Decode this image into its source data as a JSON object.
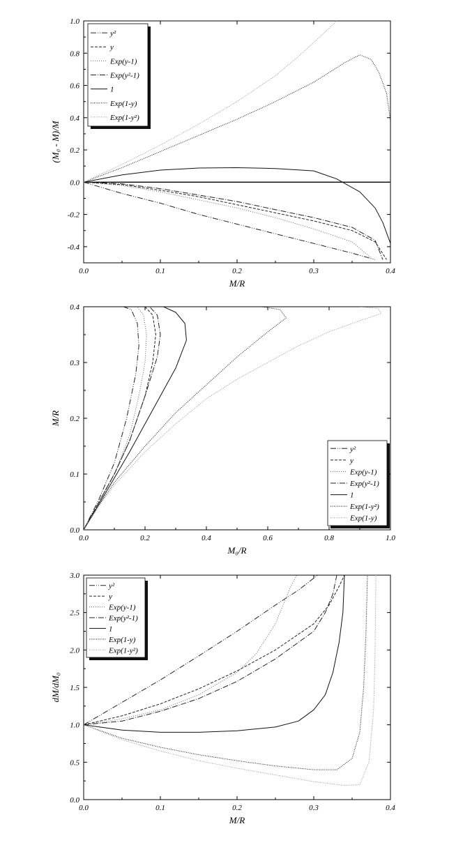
{
  "chart_data": [
    {
      "type": "line",
      "xlabel": "M/R",
      "ylabel": "(M₀ - M)/M",
      "xlim": [
        0.0,
        0.4
      ],
      "ylim": [
        -0.5,
        1.0
      ],
      "xticks": [
        0.0,
        0.1,
        0.2,
        0.3,
        0.4
      ],
      "yticks": [
        -0.4,
        -0.2,
        0.0,
        0.2,
        0.4,
        0.6,
        0.8,
        1.0
      ],
      "xtick_labels": [
        "0.0",
        "0.1",
        "0.2",
        "0.3",
        "0.4"
      ],
      "ytick_labels": [
        "-0.4",
        "-0.2",
        "0.0",
        "0.2",
        "0.4",
        "0.6",
        "0.8",
        "1.0"
      ],
      "legend_position": "top-left",
      "grid": false,
      "hline": 0.0,
      "series": [
        {
          "name": "y²",
          "dash": "8,2,1,2,1,2",
          "color": "#222222",
          "points": [
            [
              0,
              0
            ],
            [
              0.05,
              -0.07
            ],
            [
              0.1,
              -0.13
            ],
            [
              0.15,
              -0.2
            ],
            [
              0.2,
              -0.26
            ],
            [
              0.25,
              -0.32
            ],
            [
              0.3,
              -0.38
            ],
            [
              0.35,
              -0.44
            ],
            [
              0.38,
              -0.48
            ]
          ]
        },
        {
          "name": "y",
          "dash": "4,2",
          "color": "#222222",
          "points": [
            [
              0,
              0
            ],
            [
              0.05,
              -0.015
            ],
            [
              0.1,
              -0.05
            ],
            [
              0.15,
              -0.09
            ],
            [
              0.2,
              -0.14
            ],
            [
              0.25,
              -0.19
            ],
            [
              0.3,
              -0.24
            ],
            [
              0.35,
              -0.3
            ],
            [
              0.38,
              -0.37
            ],
            [
              0.395,
              -0.48
            ]
          ]
        },
        {
          "name": "Exp(y-1)",
          "dash": "1,2",
          "color": "#666666",
          "points": [
            [
              0,
              0
            ],
            [
              0.05,
              -0.02
            ],
            [
              0.1,
              -0.06
            ],
            [
              0.15,
              -0.11
            ],
            [
              0.2,
              -0.16
            ],
            [
              0.25,
              -0.22
            ],
            [
              0.3,
              -0.29
            ],
            [
              0.35,
              -0.37
            ],
            [
              0.375,
              -0.47
            ]
          ]
        },
        {
          "name": "Exp(y²-1)",
          "dash": "8,2,1,2",
          "color": "#222222",
          "points": [
            [
              0,
              0
            ],
            [
              0.05,
              -0.01
            ],
            [
              0.1,
              -0.04
            ],
            [
              0.15,
              -0.08
            ],
            [
              0.2,
              -0.12
            ],
            [
              0.25,
              -0.17
            ],
            [
              0.3,
              -0.22
            ],
            [
              0.35,
              -0.28
            ],
            [
              0.38,
              -0.36
            ],
            [
              0.39,
              -0.48
            ]
          ]
        },
        {
          "name": "1",
          "dash": "",
          "color": "#111111",
          "points": [
            [
              0,
              0
            ],
            [
              0.05,
              0.045
            ],
            [
              0.1,
              0.075
            ],
            [
              0.15,
              0.088
            ],
            [
              0.2,
              0.09
            ],
            [
              0.25,
              0.085
            ],
            [
              0.3,
              0.07
            ],
            [
              0.33,
              0.02
            ],
            [
              0.36,
              -0.06
            ],
            [
              0.38,
              -0.16
            ],
            [
              0.39,
              -0.25
            ],
            [
              0.4,
              -0.38
            ]
          ]
        },
        {
          "name": "Exp(1-y)",
          "dash": "1,1.5",
          "color": "#111111",
          "points": [
            [
              0,
              0
            ],
            [
              0.05,
              0.09
            ],
            [
              0.1,
              0.19
            ],
            [
              0.15,
              0.29
            ],
            [
              0.2,
              0.39
            ],
            [
              0.25,
              0.5
            ],
            [
              0.3,
              0.62
            ],
            [
              0.34,
              0.74
            ],
            [
              0.36,
              0.79
            ],
            [
              0.375,
              0.76
            ],
            [
              0.385,
              0.68
            ],
            [
              0.395,
              0.55
            ],
            [
              0.4,
              0.38
            ]
          ]
        },
        {
          "name": "Exp(1-y²)",
          "dash": "1,1.5",
          "color": "#999999",
          "points": [
            [
              0,
              0
            ],
            [
              0.05,
              0.11
            ],
            [
              0.1,
              0.23
            ],
            [
              0.15,
              0.36
            ],
            [
              0.2,
              0.5
            ],
            [
              0.25,
              0.66
            ],
            [
              0.28,
              0.78
            ],
            [
              0.31,
              0.91
            ],
            [
              0.33,
              1.0
            ]
          ]
        }
      ]
    },
    {
      "type": "line",
      "xlabel": "M₀/R",
      "ylabel": "M/R",
      "xlim": [
        0.0,
        1.0
      ],
      "ylim": [
        0.0,
        0.4
      ],
      "xticks": [
        0.0,
        0.2,
        0.4,
        0.6,
        0.8,
        1.0
      ],
      "yticks": [
        0.0,
        0.1,
        0.2,
        0.3,
        0.4
      ],
      "xtick_labels": [
        "0.0",
        "0.2",
        "0.4",
        "0.6",
        "0.8",
        "1.0"
      ],
      "ytick_labels": [
        "0.0",
        "0.1",
        "0.2",
        "0.3",
        "0.4"
      ],
      "legend_position": "bottom-right",
      "grid": false,
      "series": [
        {
          "name": "y²",
          "dash": "8,2,1,2,1,2",
          "color": "#222222",
          "points": [
            [
              0,
              0
            ],
            [
              0.05,
              0.055
            ],
            [
              0.1,
              0.12
            ],
            [
              0.14,
              0.2
            ],
            [
              0.17,
              0.28
            ],
            [
              0.18,
              0.33
            ],
            [
              0.175,
              0.37
            ],
            [
              0.155,
              0.395
            ],
            [
              0.13,
              0.4
            ]
          ]
        },
        {
          "name": "y",
          "dash": "4,2",
          "color": "#222222",
          "points": [
            [
              0,
              0
            ],
            [
              0.05,
              0.05
            ],
            [
              0.1,
              0.1
            ],
            [
              0.15,
              0.16
            ],
            [
              0.2,
              0.24
            ],
            [
              0.225,
              0.3
            ],
            [
              0.235,
              0.35
            ],
            [
              0.225,
              0.385
            ],
            [
              0.2,
              0.4
            ]
          ]
        },
        {
          "name": "Exp(y-1)",
          "dash": "1,2",
          "color": "#666666",
          "points": [
            [
              0,
              0
            ],
            [
              0.05,
              0.048
            ],
            [
              0.1,
              0.1
            ],
            [
              0.15,
              0.17
            ],
            [
              0.18,
              0.24
            ],
            [
              0.2,
              0.3
            ],
            [
              0.205,
              0.35
            ],
            [
              0.195,
              0.385
            ],
            [
              0.175,
              0.4
            ]
          ]
        },
        {
          "name": "Exp(y²-1)",
          "dash": "8,2,1,2",
          "color": "#222222",
          "points": [
            [
              0,
              0
            ],
            [
              0.05,
              0.05
            ],
            [
              0.1,
              0.1
            ],
            [
              0.15,
              0.16
            ],
            [
              0.2,
              0.24
            ],
            [
              0.24,
              0.31
            ],
            [
              0.25,
              0.35
            ],
            [
              0.24,
              0.385
            ],
            [
              0.215,
              0.4
            ]
          ]
        },
        {
          "name": "1",
          "dash": "",
          "color": "#111111",
          "points": [
            [
              0,
              0
            ],
            [
              0.05,
              0.046
            ],
            [
              0.1,
              0.093
            ],
            [
              0.15,
              0.14
            ],
            [
              0.2,
              0.19
            ],
            [
              0.25,
              0.24
            ],
            [
              0.3,
              0.29
            ],
            [
              0.335,
              0.34
            ],
            [
              0.33,
              0.37
            ],
            [
              0.3,
              0.39
            ],
            [
              0.26,
              0.4
            ]
          ]
        },
        {
          "name": "Exp(1-y²)",
          "dash": "1,1.5",
          "color": "#111111",
          "points": [
            [
              0,
              0
            ],
            [
              0.05,
              0.044
            ],
            [
              0.1,
              0.085
            ],
            [
              0.2,
              0.15
            ],
            [
              0.3,
              0.21
            ],
            [
              0.4,
              0.26
            ],
            [
              0.5,
              0.31
            ],
            [
              0.6,
              0.355
            ],
            [
              0.66,
              0.38
            ],
            [
              0.64,
              0.395
            ],
            [
              0.58,
              0.4
            ]
          ]
        },
        {
          "name": "Exp(1-y)",
          "dash": "1,1.5",
          "color": "#999999",
          "points": [
            [
              0,
              0
            ],
            [
              0.05,
              0.043
            ],
            [
              0.1,
              0.08
            ],
            [
              0.2,
              0.14
            ],
            [
              0.3,
              0.19
            ],
            [
              0.4,
              0.235
            ],
            [
              0.5,
              0.27
            ],
            [
              0.6,
              0.3
            ],
            [
              0.7,
              0.33
            ],
            [
              0.8,
              0.355
            ],
            [
              0.9,
              0.375
            ],
            [
              0.97,
              0.388
            ],
            [
              0.96,
              0.397
            ],
            [
              0.9,
              0.4
            ]
          ]
        }
      ]
    },
    {
      "type": "line",
      "xlabel": "M/R",
      "ylabel": "dM/dM₀",
      "xlim": [
        0.0,
        0.4
      ],
      "ylim": [
        0.0,
        3.0
      ],
      "xticks": [
        0.0,
        0.1,
        0.2,
        0.3,
        0.4
      ],
      "yticks": [
        0.0,
        0.5,
        1.0,
        1.5,
        2.0,
        2.5,
        3.0
      ],
      "xtick_labels": [
        "0.0",
        "0.1",
        "0.2",
        "0.3",
        "0.4"
      ],
      "ytick_labels": [
        "0.0",
        "0.5",
        "1.0",
        "1.5",
        "2.0",
        "2.5",
        "3.0"
      ],
      "legend_position": "top-left",
      "grid": false,
      "series": [
        {
          "name": "y²",
          "dash": "8,2,1,2,1,2",
          "color": "#222222",
          "points": [
            [
              0,
              1.0
            ],
            [
              0.05,
              1.3
            ],
            [
              0.1,
              1.6
            ],
            [
              0.15,
              1.92
            ],
            [
              0.2,
              2.25
            ],
            [
              0.25,
              2.6
            ],
            [
              0.28,
              2.8
            ],
            [
              0.305,
              3.0
            ]
          ]
        },
        {
          "name": "y",
          "dash": "4,2",
          "color": "#222222",
          "points": [
            [
              0,
              1.0
            ],
            [
              0.05,
              1.12
            ],
            [
              0.1,
              1.28
            ],
            [
              0.15,
              1.48
            ],
            [
              0.2,
              1.72
            ],
            [
              0.25,
              2.0
            ],
            [
              0.3,
              2.35
            ],
            [
              0.32,
              2.6
            ],
            [
              0.333,
              2.85
            ],
            [
              0.34,
              3.0
            ]
          ]
        },
        {
          "name": "Exp(y-1)",
          "dash": "1,2",
          "color": "#666666",
          "points": [
            [
              0,
              1.0
            ],
            [
              0.05,
              1.08
            ],
            [
              0.1,
              1.2
            ],
            [
              0.15,
              1.4
            ],
            [
              0.2,
              1.7
            ],
            [
              0.225,
              1.95
            ],
            [
              0.25,
              2.35
            ],
            [
              0.26,
              2.6
            ],
            [
              0.27,
              2.85
            ],
            [
              0.278,
              3.0
            ]
          ]
        },
        {
          "name": "Exp(y²-1)",
          "dash": "8,2,1,2",
          "color": "#222222",
          "points": [
            [
              0,
              1.0
            ],
            [
              0.05,
              1.05
            ],
            [
              0.1,
              1.18
            ],
            [
              0.15,
              1.35
            ],
            [
              0.2,
              1.58
            ],
            [
              0.25,
              1.88
            ],
            [
              0.3,
              2.25
            ],
            [
              0.315,
              2.5
            ],
            [
              0.325,
              2.75
            ],
            [
              0.33,
              3.0
            ]
          ]
        },
        {
          "name": "1",
          "dash": "",
          "color": "#111111",
          "points": [
            [
              0,
              1.0
            ],
            [
              0.05,
              0.93
            ],
            [
              0.1,
              0.9
            ],
            [
              0.15,
              0.9
            ],
            [
              0.2,
              0.92
            ],
            [
              0.25,
              0.97
            ],
            [
              0.28,
              1.05
            ],
            [
              0.3,
              1.2
            ],
            [
              0.315,
              1.4
            ],
            [
              0.325,
              1.7
            ],
            [
              0.333,
              2.1
            ],
            [
              0.338,
              2.5
            ],
            [
              0.34,
              3.0
            ]
          ]
        },
        {
          "name": "Exp(1-y)",
          "dash": "1,1.5",
          "color": "#111111",
          "points": [
            [
              0,
              1.0
            ],
            [
              0.05,
              0.82
            ],
            [
              0.1,
              0.7
            ],
            [
              0.15,
              0.6
            ],
            [
              0.2,
              0.52
            ],
            [
              0.25,
              0.45
            ],
            [
              0.3,
              0.4
            ],
            [
              0.33,
              0.4
            ],
            [
              0.35,
              0.55
            ],
            [
              0.36,
              0.9
            ],
            [
              0.365,
              1.5
            ],
            [
              0.368,
              2.2
            ],
            [
              0.37,
              3.0
            ]
          ]
        },
        {
          "name": "Exp(1-y²)",
          "dash": "1,1.5",
          "color": "#999999",
          "points": [
            [
              0,
              1.0
            ],
            [
              0.05,
              0.8
            ],
            [
              0.1,
              0.65
            ],
            [
              0.15,
              0.52
            ],
            [
              0.2,
              0.42
            ],
            [
              0.25,
              0.33
            ],
            [
              0.3,
              0.24
            ],
            [
              0.34,
              0.19
            ],
            [
              0.36,
              0.2
            ],
            [
              0.372,
              0.5
            ],
            [
              0.378,
              1.2
            ],
            [
              0.38,
              2.0
            ],
            [
              0.381,
              3.0
            ]
          ]
        }
      ]
    }
  ]
}
